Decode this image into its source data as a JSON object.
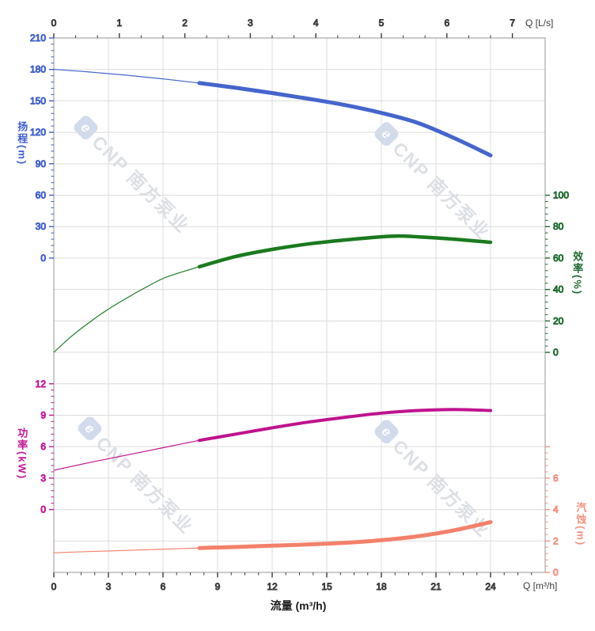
{
  "watermark": {
    "logo_glyph": "e",
    "text": "CNP 南方泵业"
  },
  "labels": {
    "top_axis_title": "Q [L/s]",
    "bottom_axis_title": "Q [m³/h]",
    "xlabel": "流量 (m³/h)",
    "head_title": "扬程(m)",
    "eff_title": "效率(%)",
    "power_title": "功率(kW)",
    "npsh_title": "汽蚀(m)"
  },
  "colors": {
    "grid": "#dcdcdc",
    "border": "#a8a8a8",
    "axis_dark": "#3a3a3a",
    "tick_label_dark": "#333333"
  },
  "chart_data": {
    "type": "line",
    "title": "",
    "grid": true,
    "xlabel": "流量 (m³/h)",
    "x_axis": {
      "label": "Q [m³/h]",
      "unit": "m³/h",
      "range": [
        0,
        27
      ],
      "majors": [
        0,
        3,
        6,
        9,
        12,
        15,
        18,
        21,
        24
      ],
      "minor_step": 0.75
    },
    "top_x_axis": {
      "label": "Q [L/s]",
      "unit": "L/s",
      "m3h_per_Ls": 3.6,
      "majors": [
        0,
        1,
        2,
        3,
        4,
        5,
        6,
        7
      ],
      "minor_step": 0.33333
    },
    "rated_flow_split_m3h": 8,
    "series": [
      {
        "id": "head",
        "name": "扬程",
        "unit": "m",
        "axis_side": "left",
        "color": "#4565cd",
        "label_color": "#3d5ecf",
        "value_range": [
          0,
          210
        ],
        "major_step": 30,
        "minor_step": 6,
        "tick_labels": [
          210,
          180,
          150,
          120,
          90,
          60,
          30,
          0
        ],
        "points_q_value": [
          [
            0,
            180
          ],
          [
            2,
            177.5
          ],
          [
            4,
            174.5
          ],
          [
            6,
            171
          ],
          [
            8,
            167
          ],
          [
            10,
            162.5
          ],
          [
            12,
            157.5
          ],
          [
            14,
            152
          ],
          [
            16,
            146
          ],
          [
            18,
            138.5
          ],
          [
            20,
            129
          ],
          [
            22,
            114.5
          ],
          [
            24,
            98
          ]
        ]
      },
      {
        "id": "efficiency",
        "name": "效率",
        "unit": "%",
        "axis_side": "right",
        "color": "#1a7a1e",
        "label_color": "#1e6b30",
        "value_range": [
          0,
          100
        ],
        "major_step": 20,
        "minor_step": 4,
        "tick_labels": [
          100,
          80,
          60,
          40,
          20,
          0
        ],
        "points_q_value": [
          [
            0,
            0
          ],
          [
            1,
            10.5
          ],
          [
            2,
            19.5
          ],
          [
            3,
            27.5
          ],
          [
            4,
            34.5
          ],
          [
            5,
            41
          ],
          [
            6,
            47
          ],
          [
            7,
            51
          ],
          [
            8,
            54.5
          ],
          [
            10,
            61
          ],
          [
            12,
            65.5
          ],
          [
            14,
            69
          ],
          [
            16,
            71.5
          ],
          [
            18,
            73.5
          ],
          [
            19,
            74
          ],
          [
            20,
            73.5
          ],
          [
            22,
            72
          ],
          [
            24,
            70
          ]
        ]
      },
      {
        "id": "power",
        "name": "功率",
        "unit": "kW",
        "axis_side": "left",
        "color": "#c0128e",
        "label_color": "#c3169a",
        "value_range": [
          0,
          12
        ],
        "major_step": 3,
        "minor_step": 0.6,
        "tick_labels": [
          12,
          9,
          6,
          3,
          0
        ],
        "points_q_value": [
          [
            0,
            3.75
          ],
          [
            2,
            4.5
          ],
          [
            4,
            5.2
          ],
          [
            6,
            5.9
          ],
          [
            8,
            6.6
          ],
          [
            10,
            7.2
          ],
          [
            12,
            7.8
          ],
          [
            14,
            8.35
          ],
          [
            16,
            8.8
          ],
          [
            18,
            9.2
          ],
          [
            20,
            9.45
          ],
          [
            22,
            9.55
          ],
          [
            24,
            9.45
          ]
        ]
      },
      {
        "id": "npsh",
        "name": "汽蚀",
        "unit": "m",
        "axis_side": "right",
        "color": "#f4806a",
        "label_color": "#f5917e",
        "value_range": [
          0,
          8
        ],
        "major_step": 2,
        "minor_step": 0.4,
        "tick_labels": [
          6,
          4,
          2,
          0
        ],
        "points_q_value": [
          [
            0,
            1.25
          ],
          [
            2,
            1.33
          ],
          [
            4,
            1.4
          ],
          [
            6,
            1.48
          ],
          [
            8,
            1.55
          ],
          [
            10,
            1.62
          ],
          [
            12,
            1.7
          ],
          [
            14,
            1.78
          ],
          [
            16,
            1.88
          ],
          [
            18,
            2.05
          ],
          [
            20,
            2.3
          ],
          [
            22,
            2.68
          ],
          [
            24,
            3.2
          ]
        ]
      }
    ]
  }
}
